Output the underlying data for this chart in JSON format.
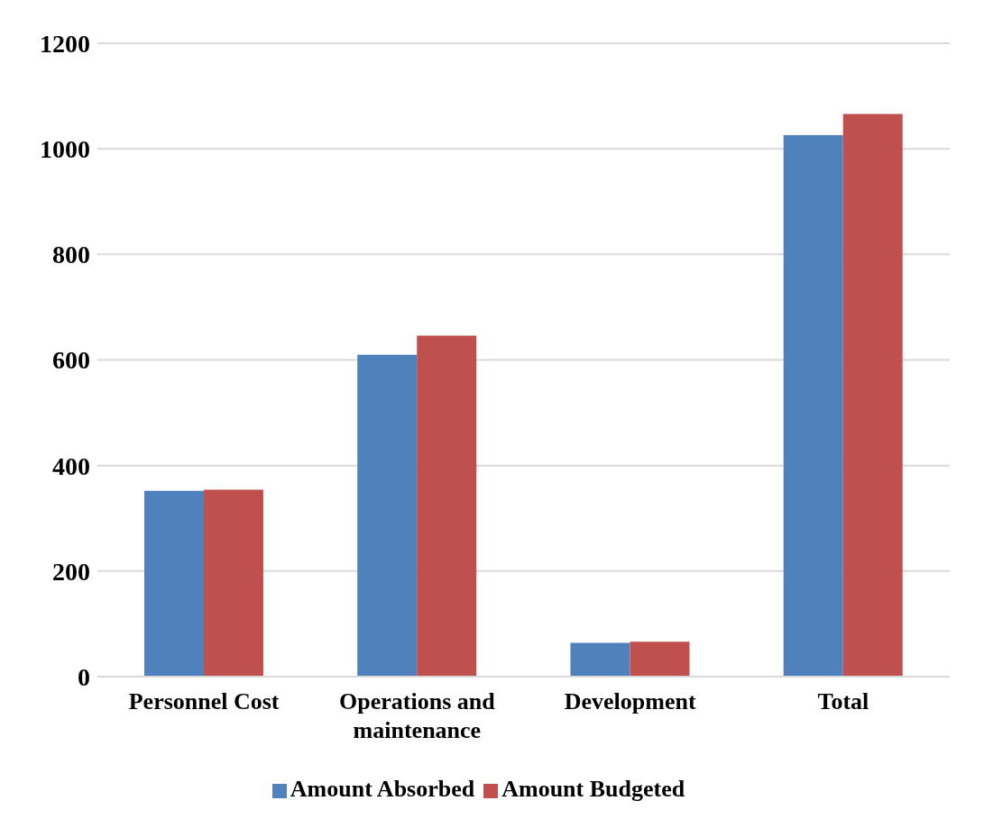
{
  "chart_data": {
    "type": "bar",
    "categories": [
      "Personnel Cost",
      "Operations and maintenance",
      "Development",
      "Total"
    ],
    "series": [
      {
        "name": "Amount Absorbed",
        "color": "#4f81bd",
        "values": [
          352,
          610,
          64,
          1026
        ]
      },
      {
        "name": "Amount Budgeted",
        "color": "#c0504d",
        "values": [
          354,
          646,
          66,
          1066
        ]
      }
    ],
    "ylim": [
      0,
      1200
    ],
    "yticks": [
      0,
      200,
      400,
      600,
      800,
      1000,
      1200
    ],
    "grid": "y",
    "legend": "bottom"
  }
}
